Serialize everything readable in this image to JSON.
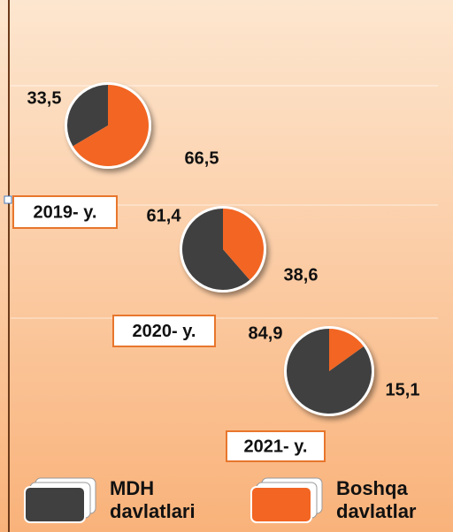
{
  "chart_data": {
    "type": "pie",
    "categories": [
      "2019- y.",
      "2020- y.",
      "2021- y."
    ],
    "series": [
      {
        "name": "MDH davlatlari",
        "color": "#404040",
        "values": [
          33.5,
          61.4,
          84.9
        ],
        "value_labels": [
          "33,5",
          "61,4",
          "84,9"
        ]
      },
      {
        "name": "Boshqa davlatlar",
        "color": "#f26522",
        "values": [
          66.5,
          38.6,
          15.1
        ],
        "value_labels": [
          "66,5",
          "38,6",
          "15,1"
        ]
      }
    ]
  }
}
